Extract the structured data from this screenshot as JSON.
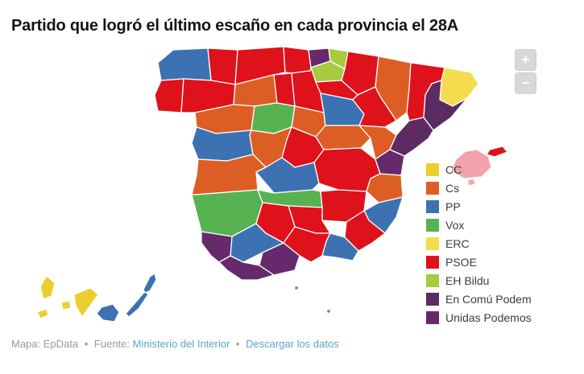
{
  "title": "Partido que logró el último escaño en cada provincia el 28A",
  "zoom": {
    "in_label": "+",
    "out_label": "−"
  },
  "legend": {
    "items": [
      {
        "label": "CC",
        "color": "#EACD2E"
      },
      {
        "label": "Cs",
        "color": "#DD5E24"
      },
      {
        "label": "PP",
        "color": "#3C72B2"
      },
      {
        "label": "Vox",
        "color": "#57B251"
      },
      {
        "label": "ERC",
        "color": "#F5DC4E"
      },
      {
        "label": "PSOE",
        "color": "#DF111B"
      },
      {
        "label": "EH Bildu",
        "color": "#A8CA3F"
      },
      {
        "label": "En Comú Podem",
        "color": "#5B2B62"
      },
      {
        "label": "Unidas Podemos",
        "color": "#662A6C"
      }
    ]
  },
  "map": {
    "border_color": "#FFFFFF",
    "other_colors": {
      "baleares_pink": "#F2A3AC",
      "tiny_territory": "#8a7f7f"
    },
    "provinces": [
      {
        "id": "a-coruna",
        "party": "PP"
      },
      {
        "id": "lugo",
        "party": "PSOE"
      },
      {
        "id": "pontevedra",
        "party": "PSOE"
      },
      {
        "id": "ourense",
        "party": "PSOE"
      },
      {
        "id": "asturias",
        "party": "PSOE"
      },
      {
        "id": "cantabria",
        "party": "PSOE"
      },
      {
        "id": "bizkaia",
        "party": "Unidas Podemos"
      },
      {
        "id": "gipuzkoa",
        "party": "EH Bildu"
      },
      {
        "id": "alava",
        "party": "EH Bildu"
      },
      {
        "id": "navarra",
        "party": "PSOE"
      },
      {
        "id": "la-rioja",
        "party": "PSOE"
      },
      {
        "id": "leon",
        "party": "Cs"
      },
      {
        "id": "palencia",
        "party": "PSOE"
      },
      {
        "id": "burgos",
        "party": "PSOE"
      },
      {
        "id": "zamora",
        "party": "Cs"
      },
      {
        "id": "valladolid",
        "party": "Vox"
      },
      {
        "id": "segovia",
        "party": "Cs"
      },
      {
        "id": "soria",
        "party": "PP"
      },
      {
        "id": "salamanca",
        "party": "PP"
      },
      {
        "id": "avila",
        "party": "Cs"
      },
      {
        "id": "madrid",
        "party": "PSOE"
      },
      {
        "id": "guadalajara",
        "party": "Cs"
      },
      {
        "id": "cuenca",
        "party": "PSOE"
      },
      {
        "id": "toledo",
        "party": "PP"
      },
      {
        "id": "caceres",
        "party": "Cs"
      },
      {
        "id": "badajoz",
        "party": "Vox"
      },
      {
        "id": "ciudad-real",
        "party": "Vox"
      },
      {
        "id": "albacete",
        "party": "PSOE"
      },
      {
        "id": "teruel",
        "party": "Cs"
      },
      {
        "id": "zaragoza",
        "party": "PSOE"
      },
      {
        "id": "huesca",
        "party": "Cs"
      },
      {
        "id": "lleida",
        "party": "PSOE"
      },
      {
        "id": "girona",
        "party": "ERC"
      },
      {
        "id": "barcelona",
        "party": "En Comú Podem"
      },
      {
        "id": "tarragona",
        "party": "En Comú Podem"
      },
      {
        "id": "castellon",
        "party": "Unidas Podemos"
      },
      {
        "id": "valencia",
        "party": "Cs"
      },
      {
        "id": "alicante",
        "party": "PP"
      },
      {
        "id": "murcia",
        "party": "PSOE"
      },
      {
        "id": "almeria",
        "party": "PP"
      },
      {
        "id": "granada",
        "party": "PSOE"
      },
      {
        "id": "jaen",
        "party": "PSOE"
      },
      {
        "id": "cordoba",
        "party": "PSOE"
      },
      {
        "id": "sevilla",
        "party": "PP"
      },
      {
        "id": "malaga",
        "party": "Unidas Podemos"
      },
      {
        "id": "cadiz",
        "party": "Unidas Podemos"
      },
      {
        "id": "huelva",
        "party": "Unidas Podemos"
      },
      {
        "id": "mallorca",
        "party": "",
        "color": "#F2A3AC"
      },
      {
        "id": "menorca",
        "party": "PSOE"
      },
      {
        "id": "ibiza",
        "party": "",
        "color": "#F2A3AC"
      },
      {
        "id": "tenerife",
        "party": "CC"
      },
      {
        "id": "la-palma",
        "party": "CC"
      },
      {
        "id": "la-gomera",
        "party": "CC"
      },
      {
        "id": "el-hierro",
        "party": "CC"
      },
      {
        "id": "gran-canaria",
        "party": "PP"
      },
      {
        "id": "fuerteventura",
        "party": "PP"
      },
      {
        "id": "lanzarote",
        "party": "PP"
      },
      {
        "id": "ceuta",
        "party": "",
        "color": "#8a7f7f"
      },
      {
        "id": "melilla",
        "party": "",
        "color": "#8a7f7f"
      }
    ]
  },
  "footer": {
    "credit": "Mapa: EpData",
    "separator": "•",
    "source_prefix": "Fuente:",
    "source_link": "Ministerio del Interior",
    "download_link": "Descargar los datos"
  }
}
